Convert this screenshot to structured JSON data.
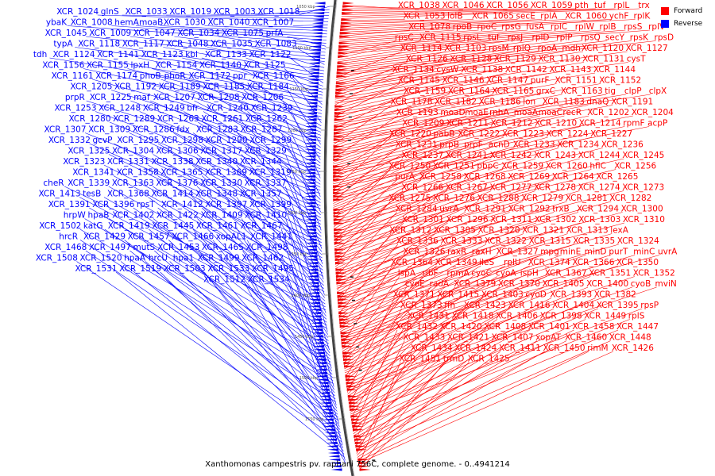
{
  "title": "Xanthomonas campestris pv. raphani 756C, complete genome. - 0..4941214",
  "legend": [
    {
      "label": "Forward",
      "color": "#ff0000"
    },
    {
      "label": "Reverse",
      "color": "#0000ff"
    }
  ],
  "scale_ticks": [
    "1050 kbp",
    "1100 kbp",
    "1150 kbp",
    "1200 kbp",
    "1250 kbp",
    "1300 kbp",
    "1350 kbp",
    "1400 kbp",
    "1450 kbp",
    "1500 kbp",
    "1550 kbp"
  ],
  "reverse_labels": [
    "XCR_1018",
    "XCR_1003",
    "XCR_1019",
    "XCR_1033",
    "glnS",
    "XCR_1024",
    "XCR_1007",
    "XCR_1040",
    "XCR_1030",
    "moaB",
    "hemA",
    "XCR_1008",
    "ybaK",
    "prfA",
    "XCR_1075",
    "XCR_1034",
    "XCR_1047",
    "XCR_1009",
    "XCR_1045",
    "XCR_1083",
    "XCR_1035",
    "XCR_1048",
    "XCR_1117",
    "XCR_1118",
    "typA",
    "XCR_1122",
    "XCR_1133",
    "kbl",
    "XCR_1123",
    "XCR_1141",
    "XCR_1124",
    "tdh",
    "XCR_1125",
    "XCR_1140",
    "XCR_1154",
    "lpxH",
    "XCR_1155",
    "XCR_1156",
    "XCR_1166",
    "ppr",
    "XCR_1172",
    "phoR",
    "phoB",
    "XCR_1174",
    "XCR_1161",
    "XCR_1184",
    "XCR_1185",
    "XCR_1189",
    "XCR_1192",
    "XCR_1205",
    "XCR_1206",
    "XCR_1208",
    "XCR_1207",
    "maf",
    "XCR_1225",
    "prpR",
    "XCR_1239",
    "XCR_1240",
    "bfr",
    "XCR_1249",
    "XCR_1248",
    "XCR_1253",
    "XCR_1262",
    "XCR_1261",
    "XCR_1263",
    "XCR_1289",
    "XCR_1280",
    "XCR_1287",
    "XCR_1283",
    "fdx",
    "XCR_1286",
    "XCR_1309",
    "XCR_1307",
    "XCR_1299",
    "XCR_1290",
    "XCR_1298",
    "XCR_1295",
    "gcvP",
    "XCR_1332",
    "XCR_1329",
    "XCR_1317",
    "XCR_1306",
    "XCR_1304",
    "XCR_1325",
    "XCR_1344",
    "XCR_1340",
    "XCR_1338",
    "XCR_1331",
    "XCR_1323",
    "XCR_1319",
    "XCR_1369",
    "XCR_1365",
    "XCR_1358",
    "XCR_1341",
    "XCR_1337",
    "XCR_1330",
    "XCR_1376",
    "XCR_1363",
    "XCR_1339",
    "cheR",
    "XCR_1357",
    "XCR_1348",
    "XCR_1414",
    "XCR_1368",
    "tesB",
    "XCR_1413",
    "XCR_1399",
    "XCR_1397",
    "XCR_1412",
    "rpsT",
    "XCR_1396",
    "XCR_1391",
    "XCR_1410",
    "XCR_1409",
    "XCR_1422",
    "XCR_1402",
    "hpaB",
    "hrpW",
    "XCR_1467",
    "XCR_1461",
    "XCR_1445",
    "XCR_1419",
    "katG",
    "XCR_1502",
    "XCR_1441",
    "xopAL1",
    "XCR_1466",
    "XCR_1457",
    "XCR_1429",
    "hrcR",
    "XCR_1498",
    "XCR_1465",
    "XCR_1453",
    "mutS",
    "XCR_1497",
    "XCR_1468",
    "XCR_1462",
    "XCR_1499",
    "hpa1",
    "hrcU",
    "hpaA",
    "XCR_1520",
    "XCR_1508",
    "XCR_1495",
    "XCR_1533",
    "XCR_1503",
    "XCR_1519",
    "XCR_1531",
    "XCR_1534",
    "XCR_1512"
  ],
  "forward_labels": [
    "XCR_1038",
    "XCR_1046",
    "XCR_1056",
    "XCR_1059",
    "pth",
    "tuf",
    "rplL",
    "trx",
    "XCR_1053",
    "lolB",
    "XCR_1065",
    "secE",
    "rplA",
    "XCR_1060",
    "ychF",
    "rplK",
    "XCR_1078",
    "rpoB",
    "rpoC",
    "rpsG",
    "fusA",
    "rplC",
    "rplW",
    "rplB",
    "rpsS",
    "rplV",
    "rpsC",
    "XCR_1115",
    "rpsL",
    "tuf",
    "rpsJ",
    "rplD",
    "rplP",
    "rpsQ",
    "secY",
    "rpsK",
    "rpsD",
    "XCR_1114",
    "XCR_1103",
    "rpsM",
    "rplQ",
    "rpoA",
    "mdh",
    "XCR_1120",
    "XCR_1127",
    "XCR_1126",
    "XCR_1128",
    "XCR_1129",
    "XCR_1130",
    "XCR_1131",
    "cysT",
    "XCR_1134",
    "cysW",
    "XCR_1138",
    "XCR_1142",
    "XCR_1143",
    "XCR_1144",
    "XCR_1145",
    "XCR_1146",
    "XCR_1147",
    "purF",
    "XCR_1151",
    "XCR_1152",
    "XCR_1159",
    "XCR_1164",
    "XCR_1165",
    "grxC",
    "XCR_1163",
    "tig",
    "clpP",
    "clpX",
    "XCR_1178",
    "XCR_1182",
    "XCR_1186",
    "lon",
    "XCR_1183",
    "dnaQ",
    "XCR_1191",
    "XCR_1193",
    "moaD",
    "moaE",
    "rnhA",
    "moaA",
    "moaC",
    "recR",
    "XCR_1202",
    "XCR_1204",
    "XCR_1209",
    "XCR_1211",
    "XCR_1212",
    "XCR_1210",
    "XCR_1214",
    "rpmF",
    "acpP",
    "XCR_1220",
    "pabB",
    "XCR_1222",
    "XCR_1223",
    "XCR_1224",
    "XCR_1227",
    "XCR_1231",
    "prpB",
    "prpF",
    "acnD",
    "XCR_1233",
    "XCR_1234",
    "XCR_1236",
    "XCR_1237",
    "XCR_1241",
    "XCR_1242",
    "XCR_1243",
    "XCR_1244",
    "XCR_1245",
    "XCR_1250",
    "XCR_1251",
    "pbpC",
    "XCR_1259",
    "XCR_1260",
    "hflC",
    "XCR_1256",
    "purA",
    "XCR_1258",
    "XCR_1268",
    "XCR_1269",
    "XCR_1264",
    "XCR_1265",
    "XCR_1266",
    "XCR_1267",
    "XCR_1277",
    "XCR_1278",
    "XCR_1274",
    "XCR_1273",
    "XCR_1275",
    "XCR_1276",
    "XCR_1288",
    "XCR_1279",
    "XCR_1281",
    "XCR_1282",
    "XCR_1284",
    "uvrA",
    "XCR_1291",
    "XCR_1292",
    "trxB",
    "XCR_1294",
    "XCR_1300",
    "XCR_1301",
    "XCR_1296",
    "XCR_1311",
    "XCR_1302",
    "XCR_1303",
    "XCR_1310",
    "XCR_1312",
    "XCR_1305",
    "XCR_1320",
    "XCR_1321",
    "XCR_1313",
    "lexA",
    "XCR_1336",
    "XCR_1333",
    "XCR_1322",
    "XCR_1315",
    "XCR_1335",
    "XCR_1324",
    "XCR_1326",
    "raxR",
    "raxH",
    "XCR_1327",
    "mpg",
    "minE",
    "minD",
    "purT",
    "minC",
    "uvrA",
    "XCR_1364",
    "XCR_1349",
    "ileS",
    "rplU",
    "XCR_1374",
    "XCR_1366",
    "XCR_1350",
    "lspA",
    "ribF",
    "rpmA",
    "cyoC",
    "cyoA",
    "ispH",
    "XCR_1367",
    "XCR_1351",
    "XCR_1352",
    "cyoE",
    "radA",
    "XCR_1379",
    "XCR_1370",
    "XCR_1405",
    "XCR_1400",
    "cyoB",
    "mviN",
    "XCR_1371",
    "XCR_1415",
    "XCR_1403",
    "cyoD",
    "XCR_1393",
    "XCR_1382",
    "XCR_1373",
    "ffh",
    "XCR_1423",
    "XCR_1416",
    "XCR_1404",
    "XCR_1395",
    "rpsP",
    "XCR_1431",
    "XCR_1418",
    "XCR_1406",
    "XCR_1398",
    "XCR_1449",
    "rplS",
    "XCR_1432",
    "XCR_1420",
    "XCR_1408",
    "XCR_1401",
    "XCR_1458",
    "XCR_1447",
    "XCR_1433",
    "XCR_1421",
    "XCR_1407",
    "xopAT",
    "XCR_1460",
    "XCR_1448",
    "XCR_1434",
    "XCR_1424",
    "XCR_1411",
    "XCR_1450",
    "rimM",
    "XCR_1426",
    "XCR_1451",
    "trmD",
    "XCR_1425"
  ]
}
